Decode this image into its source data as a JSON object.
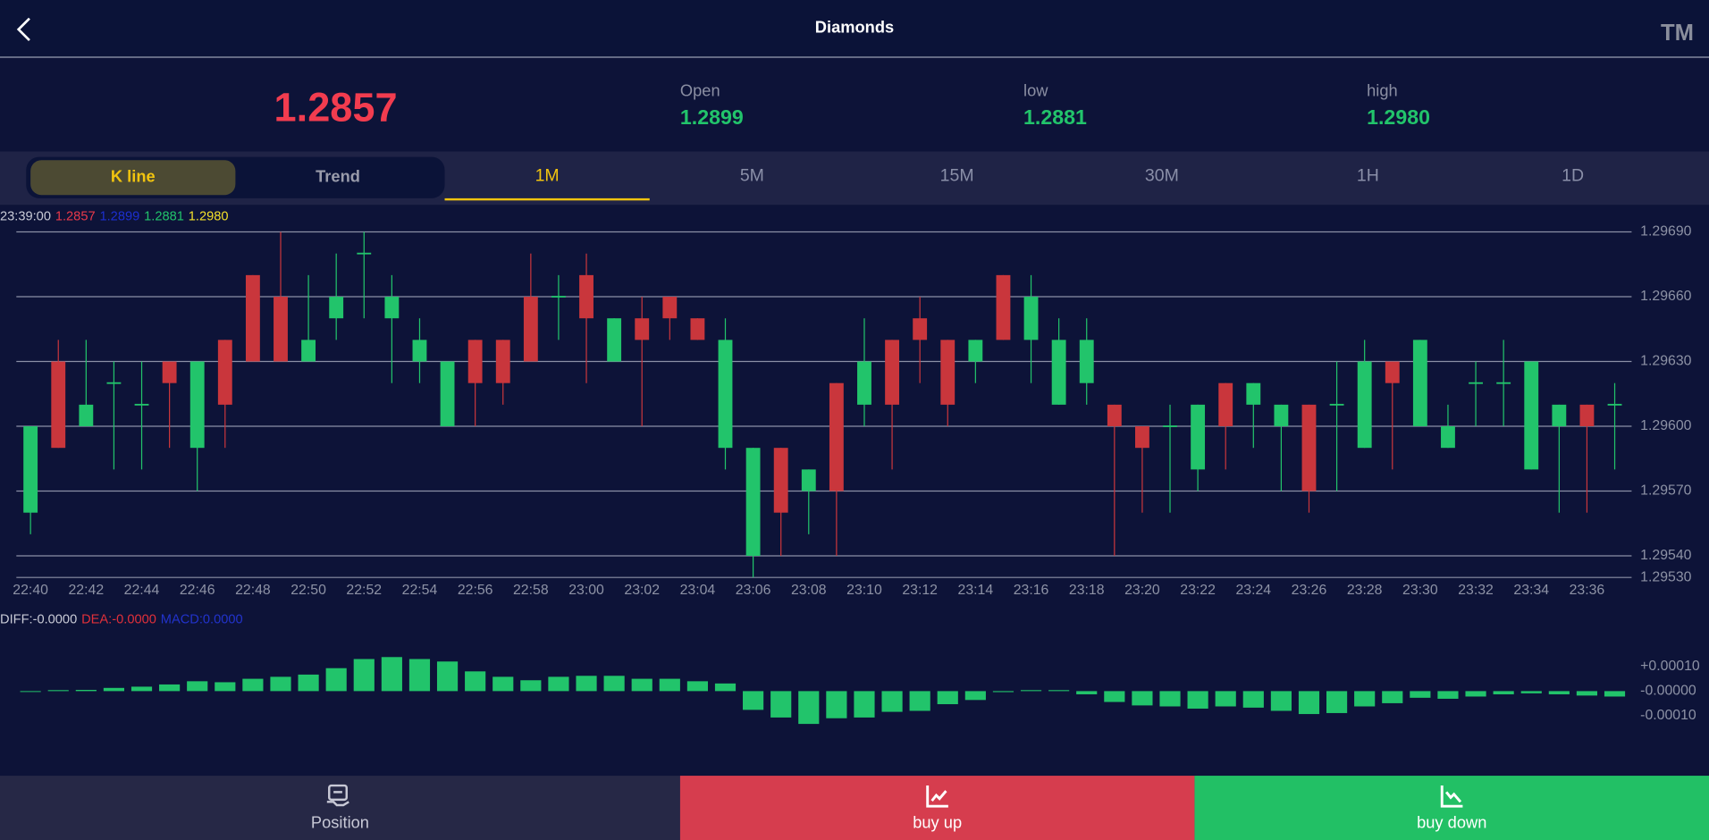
{
  "header": {
    "title": "Diamonds",
    "brand": "TM"
  },
  "quote": {
    "price": "1.2857",
    "open_label": "Open",
    "open": "1.2899",
    "low_label": "low",
    "low": "1.2881",
    "high_label": "high",
    "high": "1.2980"
  },
  "tabs": {
    "modes": [
      "K line",
      "Trend"
    ],
    "periods": [
      "1M",
      "5M",
      "15M",
      "30M",
      "1H",
      "1D"
    ]
  },
  "chart_data": [
    {
      "type": "candlestick",
      "info_time": "23:39:00",
      "info": [
        {
          "label": "1.2857",
          "color": "#e8394a"
        },
        {
          "label": "1.2899",
          "color": "#1c2fd0"
        },
        {
          "label": "1.2881",
          "color": "#22c46b"
        },
        {
          "label": "1.2980",
          "color": "#f3e02a"
        }
      ],
      "categories": [
        "22:40",
        null,
        "22:42",
        null,
        "22:44",
        null,
        "22:46",
        null,
        "22:48",
        null,
        "22:50",
        null,
        "22:52",
        null,
        "22:54",
        null,
        "22:56",
        null,
        "22:58",
        null,
        "23:00",
        null,
        "23:02",
        null,
        "23:04",
        null,
        "23:06",
        null,
        "23:08",
        null,
        "23:10",
        null,
        "23:12",
        null,
        "23:14",
        null,
        "23:16",
        null,
        "23:18",
        null,
        "23:20",
        null,
        "23:22",
        null,
        "23:24",
        null,
        "23:26",
        null,
        "23:28",
        null,
        "23:30",
        null,
        "23:32",
        null,
        "23:34",
        null,
        "23:36",
        null
      ],
      "open": [
        1.2956,
        1.2963,
        1.296,
        1.2962,
        1.2961,
        1.2963,
        1.2959,
        1.2964,
        1.2967,
        1.2966,
        1.2963,
        1.2965,
        1.2968,
        1.2965,
        1.2963,
        1.296,
        1.2964,
        1.2964,
        1.2966,
        1.2966,
        1.2967,
        1.2963,
        1.2965,
        1.2966,
        1.2965,
        1.2959,
        1.2954,
        1.2959,
        1.2957,
        1.2962,
        1.2961,
        1.2964,
        1.2965,
        1.2964,
        1.2963,
        1.2967,
        1.2964,
        1.2961,
        1.2962,
        1.2961,
        1.296,
        1.296,
        1.2958,
        1.2962,
        1.2961,
        1.296,
        1.2961,
        1.2961,
        1.2959,
        1.2963,
        1.296,
        1.2959,
        1.2962,
        1.2962,
        1.2958,
        1.296,
        1.2961,
        1.2961
      ],
      "high": [
        1.296,
        1.2964,
        1.2964,
        1.2963,
        1.2963,
        1.2963,
        1.2963,
        1.2964,
        1.2967,
        1.2969,
        1.2967,
        1.2968,
        1.2969,
        1.2967,
        1.2965,
        1.2963,
        1.2964,
        1.2964,
        1.2968,
        1.2967,
        1.2968,
        1.2965,
        1.2966,
        1.2966,
        1.2965,
        1.2965,
        1.2959,
        1.2959,
        1.2958,
        1.2962,
        1.2965,
        1.2964,
        1.2966,
        1.2964,
        1.2964,
        1.2967,
        1.2967,
        1.2965,
        1.2965,
        1.2961,
        1.296,
        1.2961,
        1.2961,
        1.2962,
        1.2962,
        1.2961,
        1.2961,
        1.2963,
        1.2964,
        1.2963,
        1.2964,
        1.2961,
        1.2963,
        1.2964,
        1.2963,
        1.2961,
        1.2961,
        1.2962
      ],
      "low": [
        1.2955,
        1.2959,
        1.296,
        1.2958,
        1.2958,
        1.2959,
        1.2957,
        1.2959,
        1.2963,
        1.2963,
        1.2963,
        1.2964,
        1.2965,
        1.2962,
        1.2962,
        1.296,
        1.296,
        1.2961,
        1.2963,
        1.2964,
        1.2962,
        1.2963,
        1.296,
        1.2964,
        1.2964,
        1.2958,
        1.2953,
        1.2954,
        1.2955,
        1.2954,
        1.296,
        1.2958,
        1.2962,
        1.296,
        1.2962,
        1.2964,
        1.2962,
        1.2961,
        1.2961,
        1.2954,
        1.2956,
        1.2956,
        1.2957,
        1.2958,
        1.2959,
        1.2957,
        1.2956,
        1.2957,
        1.2959,
        1.2958,
        1.296,
        1.2959,
        1.296,
        1.296,
        1.2958,
        1.2956,
        1.2956,
        1.2958
      ],
      "close": [
        1.296,
        1.2959,
        1.2961,
        1.2962,
        1.2961,
        1.2962,
        1.2963,
        1.2961,
        1.2963,
        1.2963,
        1.2964,
        1.2966,
        1.2968,
        1.2966,
        1.2964,
        1.2963,
        1.2962,
        1.2962,
        1.2963,
        1.2966,
        1.2965,
        1.2965,
        1.2964,
        1.2965,
        1.2964,
        1.2964,
        1.2959,
        1.2956,
        1.2958,
        1.2957,
        1.2963,
        1.2961,
        1.2964,
        1.2961,
        1.2964,
        1.2964,
        1.2966,
        1.2964,
        1.2964,
        1.296,
        1.2959,
        1.296,
        1.2961,
        1.296,
        1.2962,
        1.2961,
        1.2957,
        1.2961,
        1.2963,
        1.2962,
        1.2964,
        1.296,
        1.2962,
        1.2962,
        1.2963,
        1.2961,
        1.296,
        1.2961
      ],
      "up_color": "#22c46b",
      "down_color": "#c9363c",
      "ylim": [
        1.2953,
        1.29697
      ],
      "yticks": [
        {
          "value": 1.2969,
          "label": "1.29690"
        },
        {
          "value": 1.2966,
          "label": "1.29660"
        },
        {
          "value": 1.2963,
          "label": "1.29630"
        },
        {
          "value": 1.296,
          "label": "1.29600"
        },
        {
          "value": 1.2957,
          "label": "1.29570"
        },
        {
          "value": 1.2954,
          "label": "1.29540"
        },
        {
          "value": 1.2953,
          "label": "1.29530"
        }
      ],
      "grid": true
    },
    {
      "type": "bar",
      "info": [
        {
          "label": "DIFF:-0.0000",
          "color": "#c8cad6"
        },
        {
          "label": "DEA:-0.0000",
          "color": "#e0303a"
        },
        {
          "label": "MACD:0.0000",
          "color": "#2233cc"
        }
      ],
      "values": [
        0,
        4e-06,
        5e-06,
        1.3e-05,
        1.8e-05,
        2.7e-05,
        4e-05,
        3.6e-05,
        5e-05,
        5.8e-05,
        6.7e-05,
        9.3e-05,
        0.00013,
        0.000138,
        0.00013,
        0.00012,
        8e-05,
        5.8e-05,
        4.4e-05,
        5.8e-05,
        6.2e-05,
        6.2e-05,
        5e-05,
        5e-05,
        4e-05,
        3.1e-05,
        -7.6e-05,
        -0.000107,
        -0.000133,
        -0.00011,
        -0.000107,
        -8.4e-05,
        -8e-05,
        -5.3e-05,
        -3.6e-05,
        -4e-06,
        4e-06,
        4e-06,
        -1.3e-05,
        -4.4e-05,
        -5.8e-05,
        -6.2e-05,
        -7.1e-05,
        -6.2e-05,
        -6.7e-05,
        -8e-05,
        -9.3e-05,
        -8.9e-05,
        -6.2e-05,
        -4.9e-05,
        -2.7e-05,
        -3.1e-05,
        -2.2e-05,
        -1.3e-05,
        -9e-06,
        -1.3e-05,
        -1.8e-05,
        -2.2e-05
      ],
      "color": "#22c46b",
      "ylim": [
        -0.00029,
        0.00024
      ],
      "yticks": [
        {
          "value": 0.0001,
          "label": "+0.00010"
        },
        {
          "value": 0,
          "label": "-0.00000"
        },
        {
          "value": -0.0001,
          "label": "-0.00010"
        }
      ]
    }
  ],
  "footer": {
    "buttons": [
      "Position",
      "buy up",
      "buy down"
    ]
  }
}
